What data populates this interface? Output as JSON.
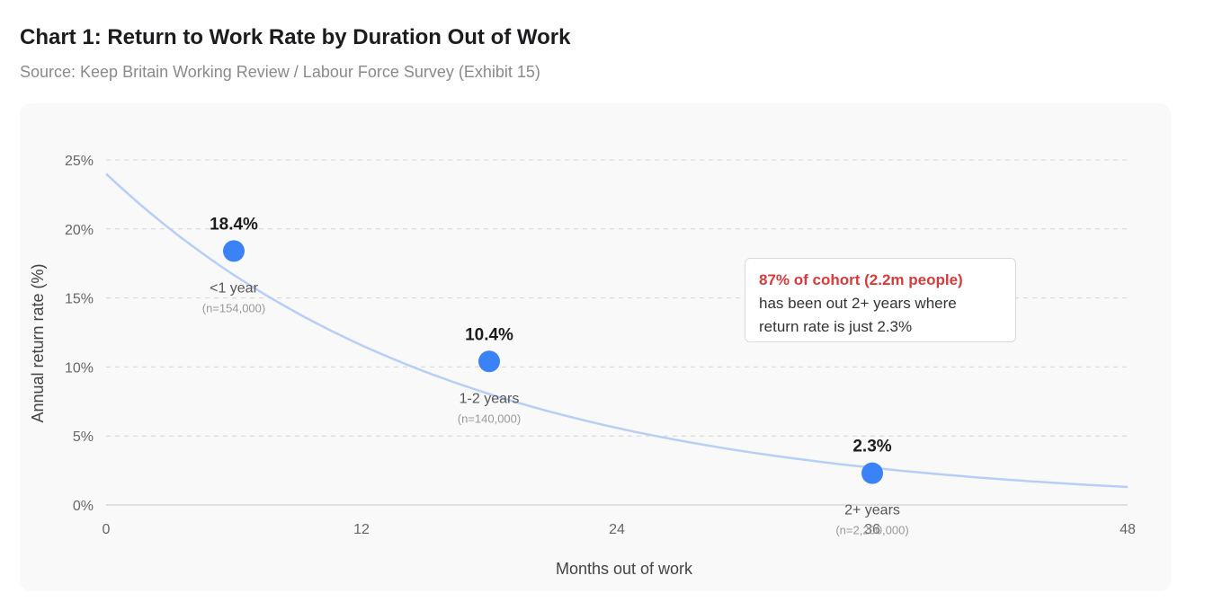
{
  "title": "Chart 1: Return to Work Rate by Duration Out of Work",
  "subtitle": "Source: Keep Britain Working Review / Labour Force Survey (Exhibit 15)",
  "annotation": {
    "highlight": "87% of cohort (2.2m people)",
    "line2": "has been out 2+ years where",
    "line3": "return rate is just 2.3%"
  },
  "colors": {
    "point": "#3b82f6",
    "curve": "#b7cff7",
    "highlight": "#d93a3a",
    "grid": "#d6d6d6"
  },
  "chart_data": {
    "type": "scatter",
    "xlabel": "Months out of work",
    "ylabel": "Annual return rate (%)",
    "xlim": [
      0,
      48
    ],
    "ylim": [
      0,
      25
    ],
    "x_ticks": [
      "0",
      "12",
      "24",
      "36",
      "48"
    ],
    "y_ticks": [
      "0%",
      "5%",
      "10%",
      "15%",
      "20%",
      "25%"
    ],
    "grid": "horizontal dashed",
    "points": [
      {
        "x": 6,
        "y": 18.4,
        "value_label": "18.4%",
        "category": "<1 year",
        "n": "(n=154,000)"
      },
      {
        "x": 18,
        "y": 10.4,
        "value_label": "10.4%",
        "category": "1-2 years",
        "n": "(n=140,000)"
      },
      {
        "x": 36,
        "y": 2.3,
        "value_label": "2.3%",
        "category": "2+ years",
        "n": "(n=2,200,000)"
      }
    ],
    "trend_curve": {
      "type": "exponential decay fit",
      "x": [
        0,
        6,
        12,
        18,
        24,
        30,
        36,
        42,
        48
      ],
      "y": [
        24.0,
        16.6,
        11.7,
        8.1,
        5.7,
        3.9,
        2.6,
        1.8,
        1.3
      ]
    }
  }
}
